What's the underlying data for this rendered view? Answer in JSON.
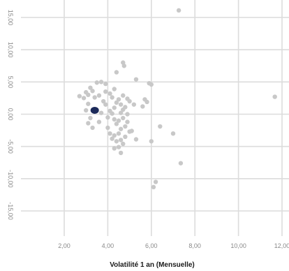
{
  "chart_data": {
    "type": "scatter",
    "title": "",
    "xlabel": "Volatilité 1 an (Mensuelle)",
    "ylabel": "",
    "xlim": [
      0,
      12
    ],
    "ylim": [
      -20,
      16
    ],
    "grid": true,
    "x_ticks": [
      2,
      4,
      6,
      8,
      10,
      12
    ],
    "x_tick_labels": [
      "2,00",
      "4,00",
      "6,00",
      "8,00",
      "10,00",
      "12,00"
    ],
    "y_ticks": [
      15,
      10,
      5,
      0,
      -5,
      -10,
      -15
    ],
    "y_tick_labels": [
      "15,00",
      "10,00",
      "5,00",
      "0,00",
      "-5,00",
      "-10,00",
      "-15,00"
    ],
    "colors": {
      "peer": "#c8c8c8",
      "highlight": "#1c2a5a",
      "grid": "#dcdcdc"
    },
    "series": [
      {
        "role": "peer",
        "points": [
          [
            7.26,
            16.1
          ],
          [
            11.67,
            2.7
          ],
          [
            4.7,
            8.0
          ],
          [
            4.75,
            7.5
          ],
          [
            4.4,
            6.5
          ],
          [
            5.3,
            5.4
          ],
          [
            5.9,
            4.8
          ],
          [
            6.0,
            4.6
          ],
          [
            3.7,
            5.0
          ],
          [
            3.5,
            4.9
          ],
          [
            3.9,
            4.7
          ],
          [
            3.2,
            4.1
          ],
          [
            3.3,
            3.6
          ],
          [
            3.0,
            3.4
          ],
          [
            3.1,
            3.0
          ],
          [
            2.7,
            2.8
          ],
          [
            2.9,
            2.5
          ],
          [
            3.4,
            2.6
          ],
          [
            3.6,
            2.9
          ],
          [
            3.9,
            3.5
          ],
          [
            4.1,
            3.2
          ],
          [
            4.3,
            3.9
          ],
          [
            4.2,
            2.6
          ],
          [
            4.5,
            2.3
          ],
          [
            4.7,
            2.9
          ],
          [
            4.9,
            2.4
          ],
          [
            5.0,
            2.0
          ],
          [
            5.2,
            1.5
          ],
          [
            5.7,
            2.3
          ],
          [
            5.8,
            1.9
          ],
          [
            5.6,
            1.2
          ],
          [
            4.4,
            1.8
          ],
          [
            4.6,
            1.5
          ],
          [
            4.8,
            1.1
          ],
          [
            4.7,
            0.7
          ],
          [
            4.6,
            0.2
          ],
          [
            4.9,
            0.0
          ],
          [
            4.3,
            1.0
          ],
          [
            4.1,
            0.5
          ],
          [
            3.9,
            1.5
          ],
          [
            3.8,
            2.0
          ],
          [
            4.2,
            0.1
          ],
          [
            3.7,
            0.2
          ],
          [
            3.1,
            1.6
          ],
          [
            3.0,
            0.6
          ],
          [
            3.2,
            -0.6
          ],
          [
            3.1,
            -1.4
          ],
          [
            3.3,
            -2.1
          ],
          [
            4.0,
            -0.5
          ],
          [
            4.3,
            -0.8
          ],
          [
            4.5,
            -1.0
          ],
          [
            4.4,
            -1.5
          ],
          [
            4.7,
            -0.6
          ],
          [
            4.8,
            -1.9
          ],
          [
            4.9,
            -1.2
          ],
          [
            4.6,
            -2.3
          ],
          [
            5.0,
            -2.7
          ],
          [
            4.5,
            -3.0
          ],
          [
            4.3,
            -3.3
          ],
          [
            4.1,
            -3.0
          ],
          [
            4.2,
            -3.8
          ],
          [
            4.4,
            -4.2
          ],
          [
            4.6,
            -4.0
          ],
          [
            4.8,
            -3.5
          ],
          [
            4.7,
            -4.6
          ],
          [
            4.5,
            -5.1
          ],
          [
            4.3,
            -5.3
          ],
          [
            4.6,
            -6.0
          ],
          [
            5.3,
            -3.9
          ],
          [
            5.1,
            -2.6
          ],
          [
            6.4,
            -1.9
          ],
          [
            7.0,
            -3.0
          ],
          [
            6.0,
            -4.2
          ],
          [
            7.35,
            -7.6
          ],
          [
            6.2,
            -10.5
          ],
          [
            6.1,
            -11.3
          ],
          [
            4.0,
            -2.1
          ],
          [
            3.6,
            -1.2
          ]
        ]
      },
      {
        "role": "highlight",
        "points": [
          [
            3.4,
            0.6
          ]
        ]
      }
    ]
  }
}
